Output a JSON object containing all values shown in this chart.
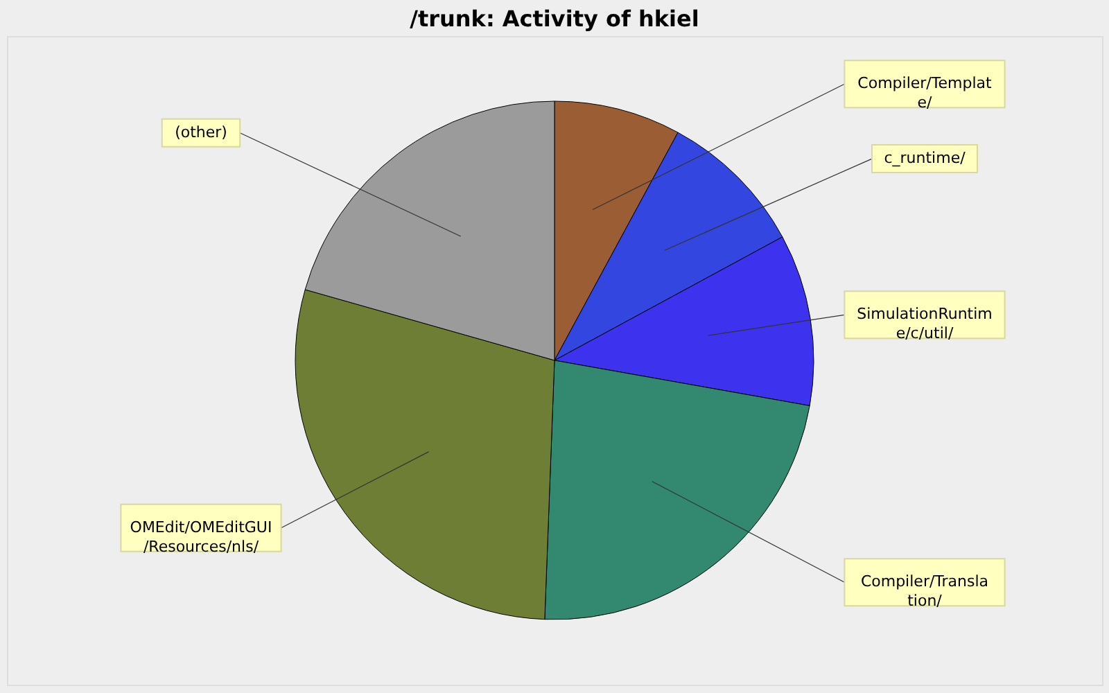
{
  "chart_data": {
    "type": "pie",
    "title": "/trunk: Activity of hkiel",
    "categories": [
      "Compiler/Template/",
      "c_runtime/",
      "SimulationRuntime/c/util/",
      "Compiler/Translation/",
      "OMEdit/OMEditGUI/Resources/nls/",
      "(other)"
    ],
    "values": [
      7.9,
      9.2,
      10.7,
      22.8,
      28.8,
      20.6
    ],
    "colors": [
      "#9a5d34",
      "#3346e0",
      "#3d32ee",
      "#338870",
      "#6e7e35",
      "#9b9b9b"
    ]
  }
}
